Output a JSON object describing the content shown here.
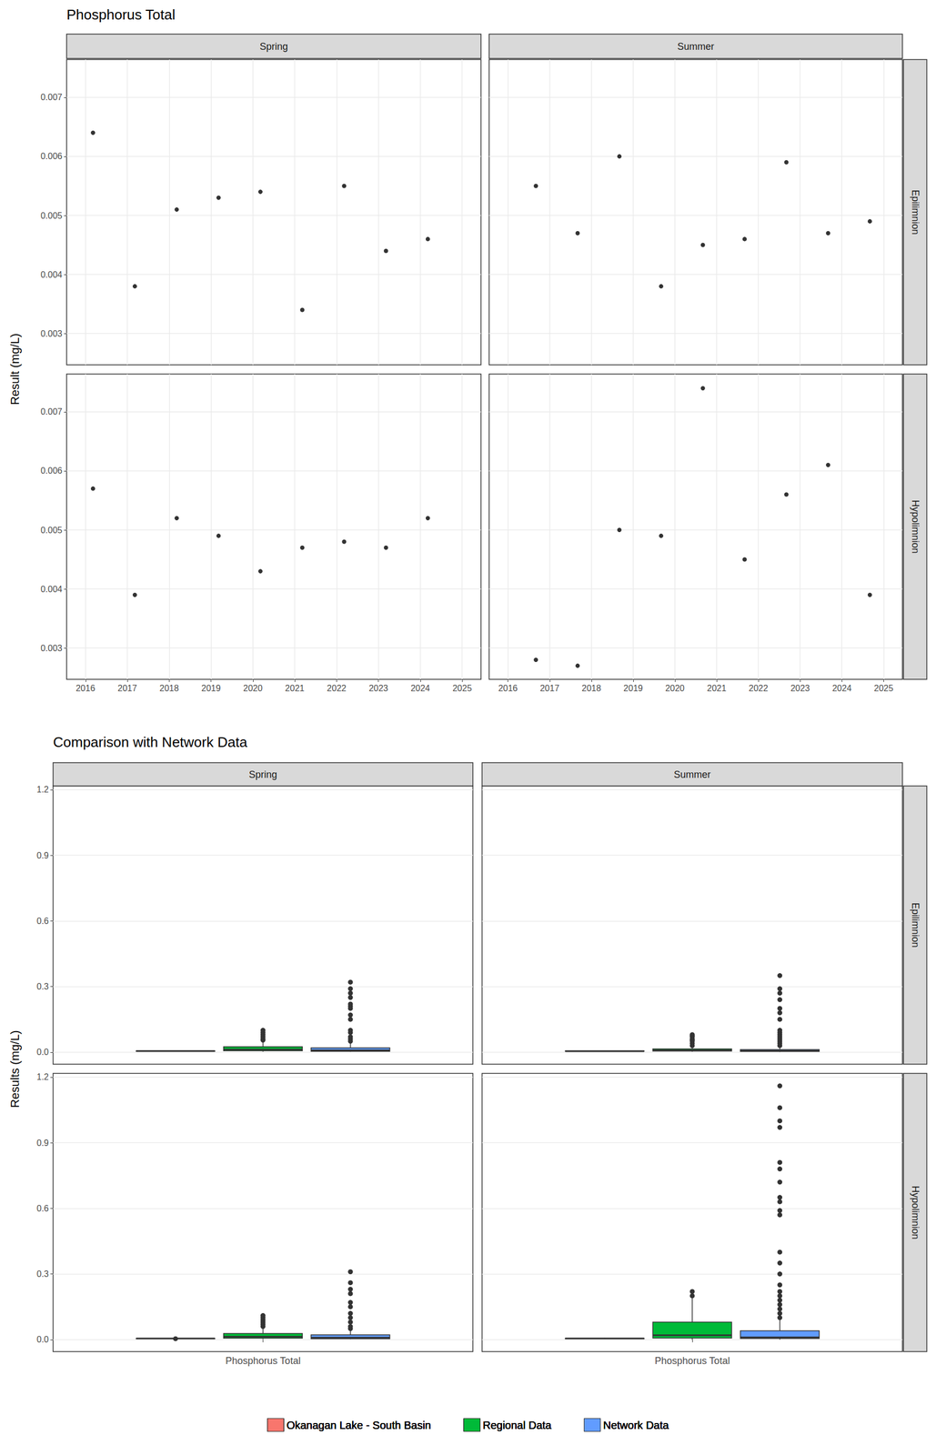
{
  "chart_data": [
    {
      "type": "scatter",
      "title": "Phosphorus Total",
      "y_label": "Result (mg/L)",
      "grid": true,
      "marker": "circle",
      "color": "#000000",
      "xlim": [
        2015.55,
        2025.45
      ],
      "xticks": [
        2016,
        2017,
        2018,
        2019,
        2020,
        2021,
        2022,
        2023,
        2024,
        2025
      ],
      "ylim": [
        0.00247,
        0.00764
      ],
      "yticks": [
        0.003,
        0.004,
        0.005,
        0.006,
        0.007
      ],
      "facets": [
        {
          "column": "Spring",
          "row": "Epilimnion",
          "x": [
            2016.18,
            2017.18,
            2018.18,
            2019.18,
            2020.18,
            2021.18,
            2022.18,
            2023.18,
            2024.18
          ],
          "values": [
            0.0064,
            0.0038,
            0.0051,
            0.0053,
            0.0054,
            0.0034,
            0.0055,
            0.0044,
            0.0046
          ]
        },
        {
          "column": "Summer",
          "row": "Epilimnion",
          "x": [
            2016.67,
            2017.67,
            2018.67,
            2019.67,
            2020.67,
            2021.67,
            2022.67,
            2023.67,
            2024.67
          ],
          "values": [
            0.0055,
            0.0047,
            0.006,
            0.0038,
            0.0045,
            0.0046,
            0.0059,
            0.0047,
            0.0049
          ]
        },
        {
          "column": "Spring",
          "row": "Hypolimnion",
          "x": [
            2016.18,
            2017.18,
            2018.18,
            2019.18,
            2020.18,
            2021.18,
            2022.18,
            2023.18,
            2024.18
          ],
          "values": [
            0.0057,
            0.0039,
            0.0052,
            0.0049,
            0.0043,
            0.0047,
            0.0048,
            0.0047,
            0.0052
          ]
        },
        {
          "column": "Summer",
          "row": "Hypolimnion",
          "x": [
            2016.67,
            2017.67,
            2018.67,
            2019.67,
            2020.67,
            2021.67,
            2022.67,
            2023.67,
            2024.67
          ],
          "values": [
            0.0028,
            0.0027,
            0.005,
            0.0049,
            0.0074,
            0.0045,
            0.0056,
            0.0061,
            0.0039
          ]
        }
      ]
    },
    {
      "type": "boxplot",
      "title": "Comparison with Network Data",
      "y_label": "Results (mg/L)",
      "grid": true,
      "legend": "bottom",
      "categories": [
        "Phosphorus Total"
      ],
      "ylim": [
        -0.055,
        1.217
      ],
      "yticks": [
        {
          "value": 0,
          "label": "0.0"
        },
        0.3,
        0.6,
        0.9,
        1.2
      ],
      "series": [
        {
          "name": "Okanagan Lake - South Basin",
          "color": "#F8766D"
        },
        {
          "name": "Regional Data",
          "color": "#00BA38"
        },
        {
          "name": "Network Data",
          "color": "#619CFF"
        }
      ],
      "facets": [
        {
          "column": "Spring",
          "row": "Epilimnion",
          "boxes": [
            {
              "min": 0.0034,
              "q1": 0.0044,
              "median": 0.0051,
              "q3": 0.0054,
              "max": 0.0064,
              "outliers": []
            },
            {
              "min": 0.002,
              "q1": 0.006,
              "median": 0.012,
              "q3": 0.025,
              "max": 0.05,
              "outliers": [
                0.055,
                0.06,
                0.07,
                0.08,
                0.09,
                0.1
              ]
            },
            {
              "min": 0.001,
              "q1": 0.004,
              "median": 0.008,
              "q3": 0.02,
              "max": 0.045,
              "outliers": [
                0.05,
                0.06,
                0.07,
                0.09,
                0.1,
                0.15,
                0.17,
                0.2,
                0.21,
                0.22,
                0.25,
                0.27,
                0.29,
                0.32
              ]
            }
          ]
        },
        {
          "column": "Summer",
          "row": "Epilimnion",
          "boxes": [
            {
              "min": 0.0038,
              "q1": 0.0046,
              "median": 0.0047,
              "q3": 0.0055,
              "max": 0.006,
              "outliers": []
            },
            {
              "min": 0.002,
              "q1": 0.005,
              "median": 0.009,
              "q3": 0.015,
              "max": 0.028,
              "outliers": [
                0.03,
                0.04,
                0.05,
                0.055,
                0.06,
                0.07,
                0.075,
                0.08
              ]
            },
            {
              "min": 0.001,
              "q1": 0.003,
              "median": 0.006,
              "q3": 0.012,
              "max": 0.025,
              "outliers": [
                0.03,
                0.04,
                0.05,
                0.06,
                0.07,
                0.08,
                0.09,
                0.1,
                0.15,
                0.18,
                0.2,
                0.24,
                0.27,
                0.29,
                0.35
              ]
            }
          ]
        },
        {
          "column": "Spring",
          "row": "Hypolimnion",
          "boxes": [
            {
              "min": 0.0043,
              "q1": 0.0047,
              "median": 0.0048,
              "q3": 0.0052,
              "max": 0.0057,
              "outliers": [
                0.0039
              ]
            },
            {
              "min": 0.002,
              "q1": 0.006,
              "median": 0.013,
              "q3": 0.028,
              "max": 0.055,
              "outliers": [
                0.06,
                0.07,
                0.08,
                0.09,
                0.1,
                0.11
              ]
            },
            {
              "min": 0.001,
              "q1": 0.004,
              "median": 0.009,
              "q3": 0.022,
              "max": 0.045,
              "outliers": [
                0.05,
                0.06,
                0.08,
                0.1,
                0.12,
                0.15,
                0.17,
                0.19,
                0.21,
                0.23,
                0.26,
                0.31
              ]
            }
          ]
        },
        {
          "column": "Summer",
          "row": "Hypolimnion",
          "boxes": [
            {
              "min": 0.0027,
              "q1": 0.0039,
              "median": 0.0049,
              "q3": 0.0056,
              "max": 0.0074,
              "outliers": []
            },
            {
              "min": 0.0,
              "q1": 0.007,
              "median": 0.02,
              "q3": 0.08,
              "max": 0.19,
              "outliers": [
                0.2,
                0.22
              ]
            },
            {
              "min": 0.0,
              "q1": 0.005,
              "median": 0.01,
              "q3": 0.04,
              "max": 0.09,
              "outliers": [
                0.1,
                0.12,
                0.14,
                0.16,
                0.18,
                0.2,
                0.22,
                0.25,
                0.3,
                0.35,
                0.4,
                0.57,
                0.59,
                0.63,
                0.65,
                0.72,
                0.78,
                0.81,
                0.97,
                1.0,
                1.06,
                1.16
              ]
            }
          ]
        }
      ]
    }
  ]
}
